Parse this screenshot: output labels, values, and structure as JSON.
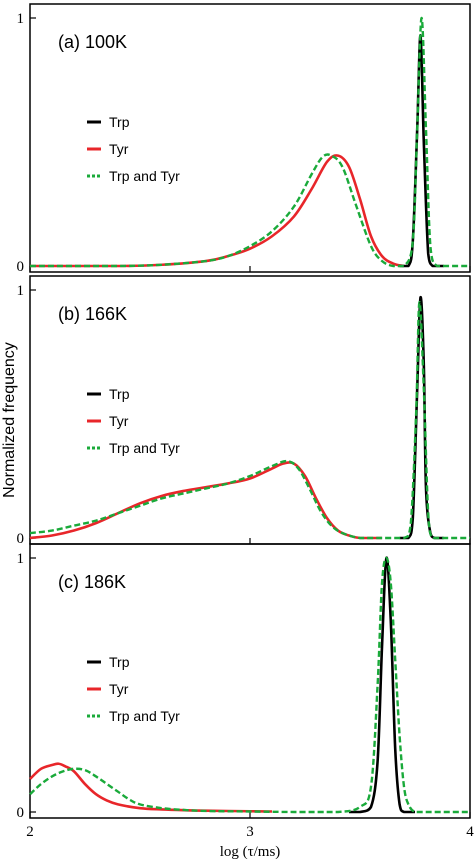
{
  "figure": {
    "ylabel": "Normalized  frequency",
    "xlabel": "log (τ/ms)",
    "xlim": [
      2,
      4
    ],
    "xticks": [
      "2",
      "3",
      "4"
    ],
    "yticks": [
      "0",
      "1"
    ]
  },
  "colors": {
    "Trp": "#000000",
    "Tyr": "#e8262a",
    "Trp and Tyr": "#1aaa3a"
  },
  "chart_data": [
    {
      "type": "line",
      "title": "(a) 100K",
      "ylim": [
        0,
        1
      ],
      "legend": "middle-left",
      "series": [
        {
          "name": "Trp",
          "style": "solid",
          "x": [
            3.68,
            3.72,
            3.74,
            3.76,
            3.775,
            3.79,
            3.81,
            3.83,
            3.85,
            3.88
          ],
          "y": [
            0.0,
            0.0,
            0.1,
            0.55,
            0.93,
            0.5,
            0.05,
            0.0,
            0.0,
            0.0
          ]
        },
        {
          "name": "Tyr",
          "style": "solid",
          "x": [
            2.0,
            2.4,
            2.6,
            2.8,
            2.9,
            3.0,
            3.1,
            3.2,
            3.28,
            3.35,
            3.4,
            3.45,
            3.5,
            3.55,
            3.6,
            3.65,
            3.7
          ],
          "y": [
            0.0,
            0.0,
            0.005,
            0.02,
            0.04,
            0.07,
            0.12,
            0.2,
            0.31,
            0.42,
            0.445,
            0.4,
            0.27,
            0.12,
            0.04,
            0.01,
            0.0
          ]
        },
        {
          "name": "Trp and Tyr",
          "style": "dashed",
          "x": [
            2.0,
            2.4,
            2.6,
            2.8,
            2.9,
            3.0,
            3.1,
            3.2,
            3.28,
            3.33,
            3.37,
            3.42,
            3.48,
            3.55,
            3.6,
            3.65,
            3.7,
            3.74,
            3.76,
            3.78,
            3.8,
            3.82,
            3.85,
            3.9,
            4.0
          ],
          "y": [
            0.0,
            0.0,
            0.005,
            0.02,
            0.04,
            0.08,
            0.14,
            0.24,
            0.37,
            0.44,
            0.445,
            0.4,
            0.25,
            0.08,
            0.02,
            0.0,
            0.0,
            0.1,
            0.55,
            1.0,
            0.55,
            0.08,
            0.0,
            0.0,
            0.0
          ]
        }
      ]
    },
    {
      "type": "line",
      "title": "(b) 166K",
      "ylim": [
        0,
        1
      ],
      "legend": "middle-left",
      "series": [
        {
          "name": "Trp",
          "style": "solid",
          "x": [
            3.68,
            3.72,
            3.74,
            3.76,
            3.775,
            3.79,
            3.8,
            3.82,
            3.84,
            3.88
          ],
          "y": [
            0.0,
            0.0,
            0.08,
            0.6,
            0.97,
            0.7,
            0.2,
            0.02,
            0.0,
            0.0
          ]
        },
        {
          "name": "Tyr",
          "style": "solid",
          "x": [
            2.0,
            2.1,
            2.2,
            2.3,
            2.4,
            2.5,
            2.6,
            2.7,
            2.8,
            2.9,
            3.0,
            3.1,
            3.15,
            3.2,
            3.25,
            3.3,
            3.35,
            3.4,
            3.45,
            3.5,
            3.6
          ],
          "y": [
            0.0,
            0.01,
            0.03,
            0.06,
            0.1,
            0.14,
            0.17,
            0.19,
            0.205,
            0.22,
            0.24,
            0.28,
            0.3,
            0.3,
            0.25,
            0.16,
            0.08,
            0.03,
            0.01,
            0.0,
            0.0
          ]
        },
        {
          "name": "Trp and Tyr",
          "style": "dashed",
          "x": [
            2.0,
            2.1,
            2.2,
            2.3,
            2.4,
            2.5,
            2.6,
            2.7,
            2.8,
            2.9,
            3.0,
            3.1,
            3.17,
            3.22,
            3.27,
            3.32,
            3.37,
            3.42,
            3.5,
            3.6,
            3.7,
            3.73,
            3.755,
            3.77,
            3.79,
            3.81,
            3.83,
            3.86,
            3.9,
            4.0
          ],
          "y": [
            0.02,
            0.03,
            0.05,
            0.07,
            0.1,
            0.13,
            0.16,
            0.18,
            0.2,
            0.22,
            0.25,
            0.29,
            0.31,
            0.28,
            0.2,
            0.11,
            0.05,
            0.02,
            0.0,
            0.0,
            0.0,
            0.05,
            0.5,
            0.95,
            0.6,
            0.1,
            0.0,
            0.0,
            0.0,
            0.0
          ]
        }
      ]
    },
    {
      "type": "line",
      "title": "(c) 186K",
      "ylim": [
        0,
        1
      ],
      "legend": "middle-left",
      "series": [
        {
          "name": "Trp",
          "style": "solid",
          "x": [
            3.45,
            3.5,
            3.55,
            3.58,
            3.6,
            3.62,
            3.64,
            3.66,
            3.68,
            3.7,
            3.75
          ],
          "y": [
            0.0,
            0.0,
            0.02,
            0.2,
            0.65,
            1.0,
            0.75,
            0.25,
            0.03,
            0.0,
            0.0
          ]
        },
        {
          "name": "Tyr",
          "style": "solid",
          "x": [
            2.0,
            2.05,
            2.1,
            2.13,
            2.16,
            2.2,
            2.25,
            2.3,
            2.35,
            2.4,
            2.5,
            2.6,
            2.7,
            2.8,
            3.0,
            3.1
          ],
          "y": [
            0.13,
            0.17,
            0.185,
            0.19,
            0.18,
            0.16,
            0.11,
            0.07,
            0.045,
            0.03,
            0.015,
            0.01,
            0.007,
            0.005,
            0.003,
            0.002
          ]
        },
        {
          "name": "Trp and Tyr",
          "style": "dashed",
          "x": [
            2.0,
            2.05,
            2.1,
            2.15,
            2.2,
            2.25,
            2.3,
            2.35,
            2.4,
            2.45,
            2.5,
            2.6,
            2.7,
            2.8,
            3.0,
            3.2,
            3.4,
            3.5,
            3.55,
            3.58,
            3.6,
            3.62,
            3.64,
            3.66,
            3.68,
            3.7,
            3.72,
            3.75,
            3.8,
            4.0
          ],
          "y": [
            0.07,
            0.11,
            0.14,
            0.16,
            0.17,
            0.165,
            0.14,
            0.11,
            0.08,
            0.05,
            0.03,
            0.015,
            0.008,
            0.004,
            0.002,
            0.0,
            0.0,
            0.02,
            0.1,
            0.5,
            0.9,
            1.0,
            0.9,
            0.6,
            0.3,
            0.1,
            0.03,
            0.0,
            0.0,
            0.0
          ]
        }
      ]
    }
  ]
}
